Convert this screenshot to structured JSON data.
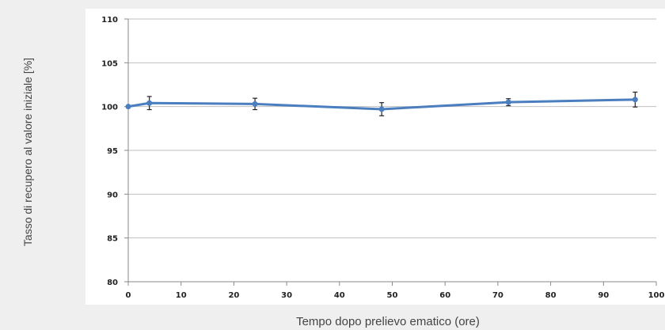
{
  "chart_data": {
    "type": "line",
    "xlabel": "Tempo dopo prelievo ematico (ore)",
    "ylabel": "Tasso di recupero al valore iniziale [%]",
    "xlim": [
      0,
      100
    ],
    "ylim": [
      80,
      110
    ],
    "x_ticks": [
      "0",
      "10",
      "20",
      "30",
      "40",
      "50",
      "60",
      "70",
      "80",
      "90",
      "100"
    ],
    "y_ticks": [
      "80",
      "85",
      "90",
      "95",
      "100",
      "105",
      "110"
    ],
    "grid": "horizontal",
    "legend": "none",
    "series": [
      {
        "x": [
          0,
          4,
          24,
          48,
          72,
          96
        ],
        "y": [
          100,
          100.4,
          100.3,
          99.7,
          100.5,
          100.8
        ],
        "error": [
          0,
          0.75,
          0.65,
          0.75,
          0.4,
          0.85
        ]
      }
    ],
    "colors": {
      "line": "#4a7ebf",
      "marker": "#4a7ebf",
      "errorbar": "#222222",
      "grid": "#bfbfbf",
      "plot_bg": "#ffffff"
    }
  }
}
